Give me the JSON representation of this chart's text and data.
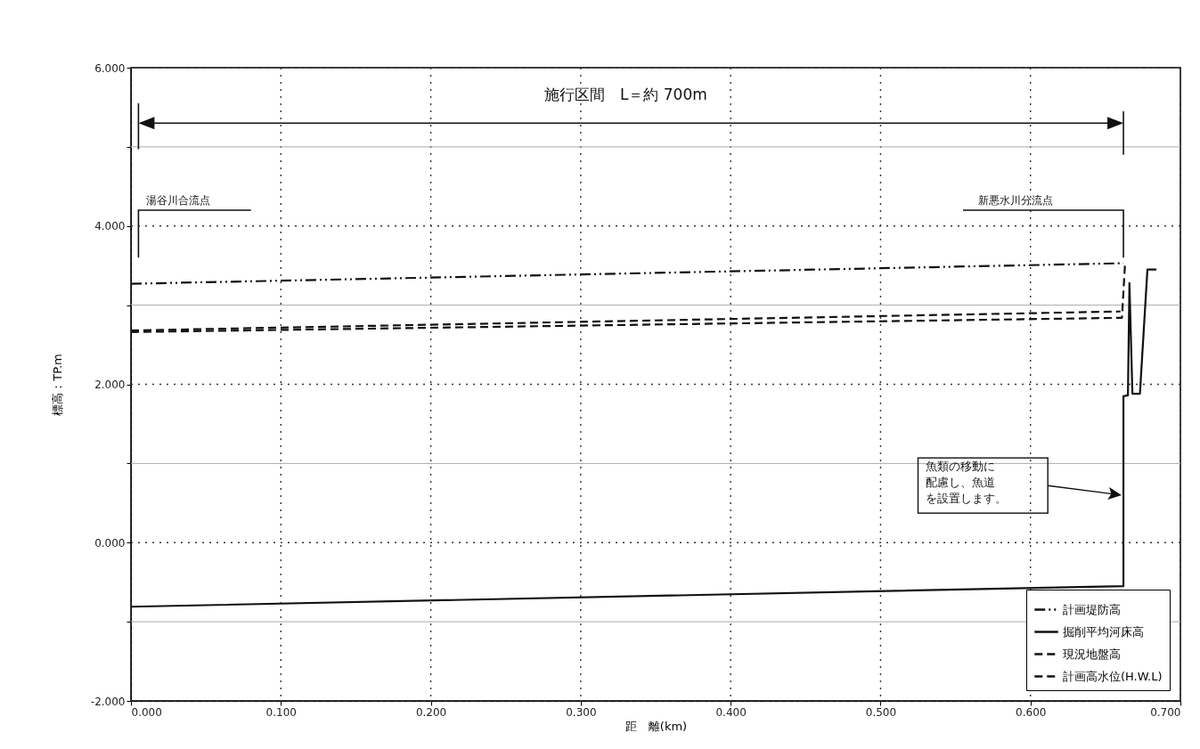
{
  "chart_data": {
    "type": "line",
    "xlabel": "距　離(km)",
    "ylabel": "標高：TP.m",
    "xlim": [
      0,
      0.7
    ],
    "ylim": [
      -2,
      6
    ],
    "xticks": [
      {
        "value": 0,
        "label": "0.000"
      },
      {
        "value": 0.1,
        "label": "0.100"
      },
      {
        "value": 0.2,
        "label": "0.200"
      },
      {
        "value": 0.3,
        "label": "0.300"
      },
      {
        "value": 0.4,
        "label": "0.400"
      },
      {
        "value": 0.5,
        "label": "0.500"
      },
      {
        "value": 0.6,
        "label": "0.600"
      },
      {
        "value": 0.7,
        "label": "0.700"
      }
    ],
    "yticks": [
      {
        "value": -2,
        "label": "-2.000"
      },
      {
        "value": -1,
        "label": null
      },
      {
        "value": 0,
        "label": "0.000"
      },
      {
        "value": 1,
        "label": null
      },
      {
        "value": 2,
        "label": "2.000"
      },
      {
        "value": 3,
        "label": null
      },
      {
        "value": 4,
        "label": "4.000"
      },
      {
        "value": 5,
        "label": null
      },
      {
        "value": 6,
        "label": "6.000"
      }
    ],
    "grid": true,
    "legend": "bottom right",
    "marker": "none",
    "series": [
      {
        "name": "計画堤防高",
        "color": "#111111",
        "line_style": "dotted",
        "x": [
          0,
          0.662
        ],
        "values": [
          3.27,
          3.53
        ]
      },
      {
        "name": "掘削平均河床高",
        "color": "#111111",
        "line_style": "solid",
        "x": [
          0,
          0.662,
          0.662,
          0.665,
          0.666,
          0.668,
          0.673,
          0.678,
          0.684
        ],
        "values": [
          -0.81,
          -0.55,
          1.85,
          1.86,
          3.28,
          1.88,
          1.88,
          3.45,
          3.45
        ]
      },
      {
        "name": "現況地盤高",
        "color": "#111111",
        "line_style": "dashed",
        "x": [
          0,
          0.661,
          0.663
        ],
        "values": [
          2.66,
          2.84,
          3.5
        ]
      },
      {
        "name": "計画高水位(H.W.L)",
        "color": "#111111",
        "line_style": "dashed",
        "x": [
          0,
          0.66
        ],
        "values": [
          2.68,
          2.92
        ]
      }
    ],
    "annotations": [
      "施行区間　L＝約 700m",
      "湯谷川合流点",
      "新悪水川分流点",
      "魚類の移動に配慮し、魚道を設置します。"
    ]
  }
}
